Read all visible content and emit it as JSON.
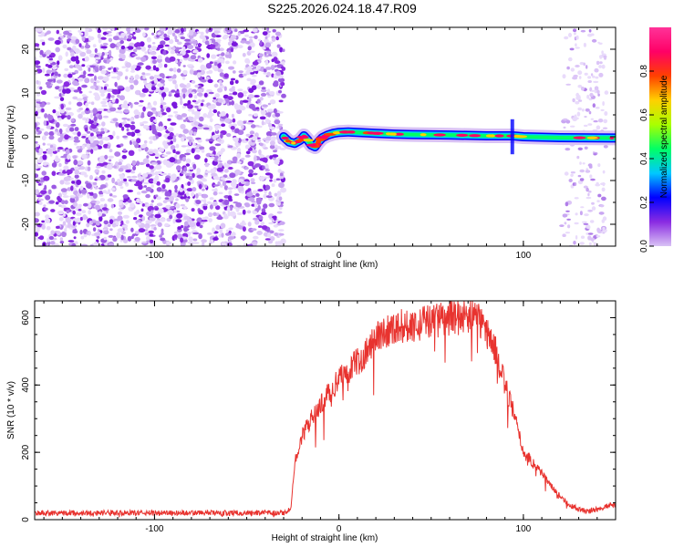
{
  "title": "S225.2026.024.18.47.R09",
  "chart_data": [
    {
      "type": "heatmap",
      "xlabel": "Height of straight line (km)",
      "ylabel": "Frequency (Hz)",
      "xlim": [
        -165,
        150
      ],
      "ylim": [
        -25,
        25
      ],
      "xticks": [
        -100,
        0,
        100
      ],
      "yticks": [
        -20,
        -10,
        0,
        10,
        20
      ],
      "colorbar": {
        "label": "Normalized spectral amplitude",
        "range": [
          0,
          1
        ],
        "ticks": [
          0.0,
          0.2,
          0.4,
          0.6,
          0.8
        ],
        "colormap": [
          "#d9c2f5",
          "#8a2be2",
          "#0000ff",
          "#00c8ff",
          "#00ff66",
          "#aaff00",
          "#ffd000",
          "#ff4000",
          "#ff0066",
          "#ff3399"
        ]
      },
      "noise_region_x": [
        -165,
        -30
      ],
      "noise_region_x2": [
        120,
        145
      ],
      "signal_trace": [
        {
          "x": -30,
          "y": 0.0
        },
        {
          "x": -27,
          "y": -1.2
        },
        {
          "x": -24,
          "y": -1.5
        },
        {
          "x": -21,
          "y": -0.8
        },
        {
          "x": -19,
          "y": 0.2
        },
        {
          "x": -17,
          "y": -0.7
        },
        {
          "x": -15,
          "y": -1.9
        },
        {
          "x": -13,
          "y": -2.3
        },
        {
          "x": -11,
          "y": -1.1
        },
        {
          "x": -9,
          "y": -0.2
        },
        {
          "x": -6,
          "y": 0.4
        },
        {
          "x": -3,
          "y": 0.8
        },
        {
          "x": 0,
          "y": 1.0
        },
        {
          "x": 5,
          "y": 1.1
        },
        {
          "x": 10,
          "y": 1.0
        },
        {
          "x": 15,
          "y": 0.9
        },
        {
          "x": 20,
          "y": 0.8
        },
        {
          "x": 30,
          "y": 0.6
        },
        {
          "x": 40,
          "y": 0.5
        },
        {
          "x": 60,
          "y": 0.4
        },
        {
          "x": 80,
          "y": 0.2
        },
        {
          "x": 94,
          "y": 0.2
        },
        {
          "x": 100,
          "y": 0.0
        },
        {
          "x": 120,
          "y": -0.2
        },
        {
          "x": 150,
          "y": -0.3
        }
      ]
    },
    {
      "type": "line",
      "xlabel": "Height of straight line (km)",
      "ylabel": "SNR (10 * v/v)",
      "xlim": [
        -165,
        150
      ],
      "ylim": [
        0,
        650
      ],
      "xticks": [
        -100,
        0,
        100
      ],
      "yticks": [
        0,
        200,
        400,
        600
      ],
      "color": "#e8332f",
      "x": [
        -165,
        -150,
        -130,
        -110,
        -90,
        -70,
        -50,
        -40,
        -30,
        -26,
        -24,
        -20,
        -15,
        -10,
        -5,
        0,
        5,
        10,
        15,
        20,
        25,
        30,
        40,
        50,
        60,
        70,
        75,
        80,
        85,
        90,
        95,
        100,
        105,
        110,
        115,
        120,
        125,
        130,
        135,
        140,
        145,
        150
      ],
      "y": [
        20,
        20,
        20,
        20,
        20,
        20,
        20,
        20,
        20,
        30,
        170,
        250,
        300,
        340,
        380,
        420,
        440,
        470,
        500,
        540,
        560,
        570,
        580,
        590,
        600,
        605,
        600,
        560,
        500,
        400,
        310,
        200,
        170,
        140,
        100,
        70,
        45,
        30,
        25,
        30,
        40,
        45
      ]
    }
  ]
}
